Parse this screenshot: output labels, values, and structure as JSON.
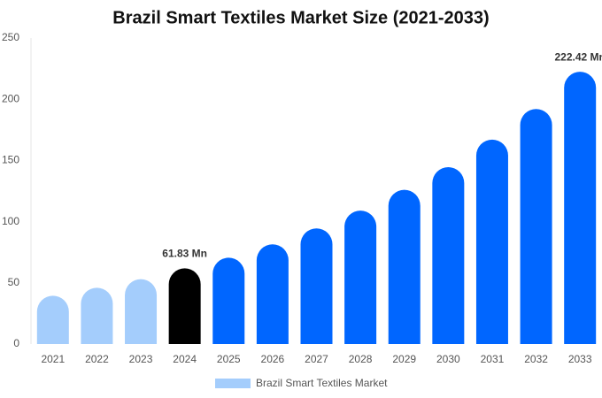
{
  "chart_data": {
    "type": "bar",
    "title": "Brazil Smart Textiles Market Size (2021-2033)",
    "categories": [
      "2021",
      "2022",
      "2023",
      "2024",
      "2025",
      "2026",
      "2027",
      "2028",
      "2029",
      "2030",
      "2031",
      "2032",
      "2033"
    ],
    "series": [
      {
        "name": "Brazil Smart Textiles Market",
        "color": "#a4cdfc",
        "colors": [
          "#a4cdfc",
          "#a4cdfc",
          "#a4cdfc",
          "#000000",
          "#0066ff",
          "#0066ff",
          "#0066ff",
          "#0066ff",
          "#0066ff",
          "#0066ff",
          "#0066ff",
          "#0066ff",
          "#0066ff"
        ],
        "values": [
          39.5,
          46,
          53,
          61.83,
          70.5,
          81.5,
          94.5,
          109,
          126,
          144.5,
          167,
          192,
          222.42
        ],
        "value_labels": [
          null,
          null,
          null,
          "61.83 Mn",
          null,
          null,
          null,
          null,
          null,
          null,
          null,
          null,
          "222.42 Mn"
        ]
      }
    ],
    "ylim": [
      0,
      250
    ],
    "yticks": [
      0,
      50,
      100,
      150,
      200,
      250
    ],
    "grid": false
  }
}
